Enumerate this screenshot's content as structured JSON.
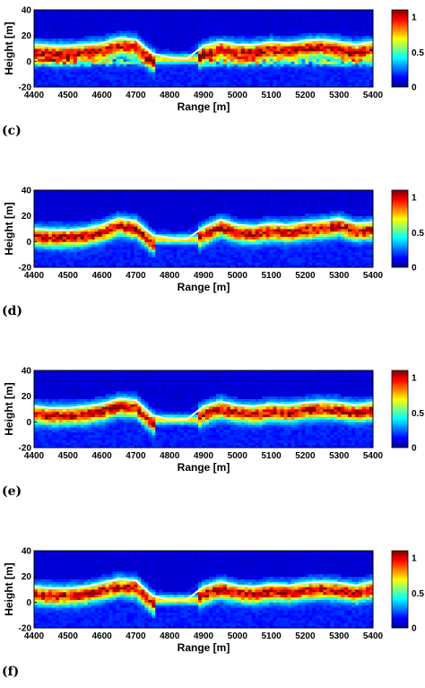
{
  "chart_data": [
    {
      "panel_label": "(c)",
      "type": "heatmap",
      "xlabel": "Range [m]",
      "ylabel": "Height [m]",
      "xlim": [
        4400,
        5400
      ],
      "ylim": [
        -20,
        40
      ],
      "xticks": [
        4400,
        4500,
        4600,
        4700,
        4800,
        4900,
        5000,
        5100,
        5200,
        5300,
        5400
      ],
      "yticks": [
        -20,
        0,
        20,
        40
      ],
      "colorbar": {
        "range": [
          0,
          1
        ],
        "ticks": [
          0,
          0.5,
          1
        ],
        "tick_labels": [
          "0",
          "0.5",
          "1"
        ]
      },
      "surface_profile": {
        "x": [
          4400,
          4450,
          4500,
          4550,
          4600,
          4650,
          4700,
          4750,
          4800,
          4850,
          4900,
          4950,
          5000,
          5050,
          5100,
          5150,
          5200,
          5250,
          5300,
          5350,
          5400
        ],
        "y": [
          13,
          12,
          12,
          13,
          14,
          18,
          17,
          6,
          3,
          2,
          12,
          15,
          13,
          13,
          15,
          14,
          16,
          17,
          15,
          13,
          15
        ]
      }
    },
    {
      "panel_label": "(d)",
      "type": "heatmap",
      "xlabel": "Range [m]",
      "ylabel": "Height [m]",
      "xlim": [
        4400,
        5400
      ],
      "ylim": [
        -20,
        40
      ],
      "xticks": [
        4400,
        4500,
        4600,
        4700,
        4800,
        4900,
        5000,
        5100,
        5200,
        5300,
        5400
      ],
      "yticks": [
        -20,
        0,
        20,
        40
      ],
      "colorbar": {
        "range": [
          0,
          1
        ],
        "ticks": [
          0,
          0.5,
          1
        ],
        "tick_labels": [
          "0",
          "0.5",
          "1"
        ]
      },
      "surface_profile": {
        "x": [
          4400,
          4450,
          4500,
          4550,
          4600,
          4650,
          4700,
          4750,
          4800,
          4850,
          4900,
          4950,
          5000,
          5050,
          5100,
          5150,
          5200,
          5250,
          5300,
          5350,
          5400
        ],
        "y": [
          10,
          9,
          9,
          10,
          13,
          18,
          16,
          5,
          3,
          2,
          11,
          17,
          13,
          12,
          14,
          13,
          15,
          16,
          18,
          14,
          15
        ]
      }
    },
    {
      "panel_label": "(e)",
      "type": "heatmap",
      "xlabel": "Range [m]",
      "ylabel": "Height [m]",
      "xlim": [
        4400,
        5400
      ],
      "ylim": [
        -20,
        40
      ],
      "xticks": [
        4400,
        4500,
        4600,
        4700,
        4800,
        4900,
        5000,
        5100,
        5200,
        5300,
        5400
      ],
      "yticks": [
        -20,
        0,
        20,
        40
      ],
      "colorbar": {
        "range": [
          0,
          1
        ],
        "ticks": [
          0,
          0.5,
          1
        ],
        "tick_labels": [
          "0",
          "0.5",
          "1"
        ]
      },
      "surface_profile": {
        "x": [
          4400,
          4450,
          4500,
          4550,
          4600,
          4650,
          4700,
          4750,
          4800,
          4850,
          4900,
          4950,
          5000,
          5050,
          5100,
          5150,
          5200,
          5250,
          5300,
          5350,
          5400
        ],
        "y": [
          12,
          11,
          11,
          12,
          14,
          18,
          17,
          5,
          2,
          2,
          12,
          16,
          13,
          12,
          14,
          13,
          15,
          16,
          15,
          13,
          15
        ]
      }
    },
    {
      "panel_label": "(f)",
      "type": "heatmap",
      "xlabel": "Range [m]",
      "ylabel": "Height [m]",
      "xlim": [
        4400,
        5400
      ],
      "ylim": [
        -20,
        40
      ],
      "xticks": [
        4400,
        4500,
        4600,
        4700,
        4800,
        4900,
        5000,
        5100,
        5200,
        5300,
        5400
      ],
      "yticks": [
        -20,
        0,
        20,
        40
      ],
      "colorbar": {
        "range": [
          0,
          1
        ],
        "ticks": [
          0,
          0.5,
          1
        ],
        "tick_labels": [
          "0",
          "0.5",
          "1"
        ]
      },
      "surface_profile": {
        "x": [
          4400,
          4450,
          4500,
          4550,
          4600,
          4650,
          4700,
          4750,
          4800,
          4850,
          4900,
          4950,
          5000,
          5050,
          5100,
          5150,
          5200,
          5250,
          5300,
          5350,
          5400
        ],
        "y": [
          12,
          11,
          11,
          12,
          15,
          18,
          17,
          5,
          2,
          2,
          12,
          16,
          13,
          12,
          14,
          13,
          15,
          16,
          15,
          13,
          16
        ]
      }
    }
  ]
}
